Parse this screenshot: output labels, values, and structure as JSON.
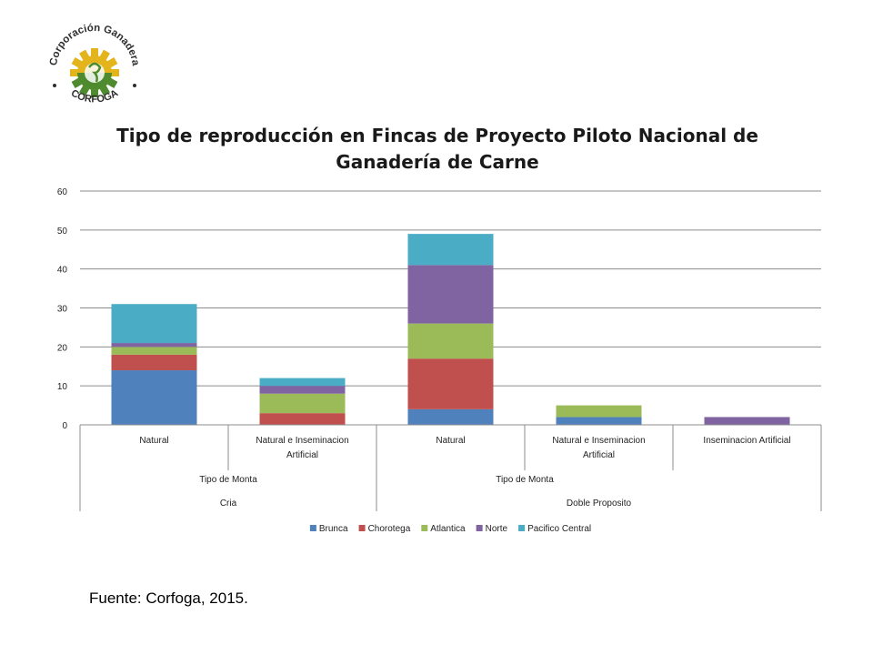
{
  "chart_data": {
    "type": "bar",
    "stacked": true,
    "title": "Tipo de reproducción en Fincas de Proyecto Piloto Nacional de Ganadería de Carne",
    "xlabel": "",
    "ylabel": "",
    "ylim": [
      0,
      60
    ],
    "yticks": [
      0,
      10,
      20,
      30,
      40,
      50,
      60
    ],
    "grid": true,
    "legend_position": "bottom",
    "categories": [
      "Natural",
      "Natural e Inseminacion Artificial",
      "Natural",
      "Natural e Inseminacion Artificial",
      "Inseminacion Artificial"
    ],
    "category_lines": [
      [
        "Natural"
      ],
      [
        "Natural e Inseminacion",
        "Artificial"
      ],
      [
        "Natural"
      ],
      [
        "Natural e Inseminacion",
        "Artificial"
      ],
      [
        "Inseminacion Artificial"
      ]
    ],
    "group_level_2": [
      {
        "label": "Tipo de Monta",
        "span": [
          0,
          1
        ]
      },
      {
        "label": "Tipo de Monta",
        "span": [
          2,
          3
        ]
      }
    ],
    "group_level_3": [
      {
        "label": "Cria",
        "span": [
          0,
          1
        ]
      },
      {
        "label": "Doble Proposito",
        "span": [
          2,
          4
        ]
      }
    ],
    "series": [
      {
        "name": "Brunca",
        "color": "#4F81BD",
        "values": [
          14,
          0,
          4,
          2,
          0
        ]
      },
      {
        "name": "Chorotega",
        "color": "#C0504D",
        "values": [
          4,
          3,
          13,
          0,
          0
        ]
      },
      {
        "name": "Atlantica",
        "color": "#9BBB59",
        "values": [
          2,
          5,
          9,
          3,
          0
        ]
      },
      {
        "name": "Norte",
        "color": "#8064A2",
        "values": [
          1,
          2,
          15,
          0,
          2
        ]
      },
      {
        "name": "Pacifico Central",
        "color": "#4BACC6",
        "values": [
          10,
          2,
          8,
          0,
          0
        ]
      }
    ]
  },
  "logo": {
    "text_top": "Corporación Ganadera",
    "text_bottom": "CORFOGA",
    "colors": {
      "gear_yellow": "#E3B41C",
      "gear_green": "#4E8A2E",
      "text": "#2E2E2E"
    }
  },
  "footer": {
    "source": "Fuente: Corfoga, 2015."
  }
}
